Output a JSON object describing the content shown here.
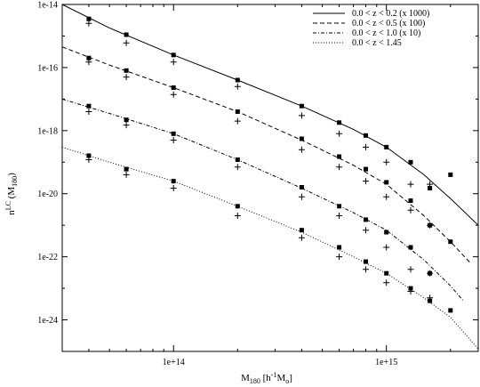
{
  "chart_data": {
    "type": "scatter",
    "title": "",
    "xlabel": "M180 [h^-1 Mo]",
    "ylabel": "n^LC (M180)",
    "xscale": "log",
    "yscale": "log",
    "xlim": [
      30000000000000,
      2700000000000000
    ],
    "ylim": [
      1e-25,
      1e-14
    ],
    "x_ticks": [
      {
        "value": 100000000000000,
        "label": "1e+14"
      },
      {
        "value": 1000000000000000,
        "label": "1e+15"
      }
    ],
    "y_ticks": [
      {
        "value": 1e-14,
        "label": "1e-14"
      },
      {
        "value": 1e-16,
        "label": "1e-16"
      },
      {
        "value": 1e-18,
        "label": "1e-18"
      },
      {
        "value": 1e-20,
        "label": "1e-20"
      },
      {
        "value": 1e-22,
        "label": "1e-22"
      },
      {
        "value": 1e-24,
        "label": "1e-24"
      }
    ],
    "grid": false,
    "legend_position": "top-right",
    "series": [
      {
        "name": "0.0 < z < 0.2   (x 1000)",
        "line_style": "solid",
        "model_curve": {
          "x": [
            30000000000000,
            50000000000000,
            100000000000000,
            200000000000000,
            400000000000000,
            700000000000000,
            1000000000000000,
            1500000000000000,
            2000000000000000,
            2700000000000000
          ],
          "y": [
            1e-14,
            1.8e-15,
            2.5e-16,
            4e-17,
            6e-18,
            1.1e-18,
            3e-19,
            4e-20,
            7e-21,
            1e-21
          ]
        },
        "squares": {
          "x": [
            40000000000000,
            60000000000000,
            100000000000000,
            200000000000000,
            400000000000000,
            600000000000000,
            800000000000000,
            1000000000000000,
            1300000000000000,
            1600000000000000,
            2000000000000000
          ],
          "y": [
            3.5e-15,
            1.1e-15,
            2.5e-16,
            4e-17,
            6e-18,
            1.8e-18,
            7e-19,
            3e-19,
            1e-19,
            1.5e-20,
            4e-20
          ]
        },
        "plus": {
          "x": [
            40000000000000,
            60000000000000,
            100000000000000,
            200000000000000,
            400000000000000,
            600000000000000,
            800000000000000,
            1000000000000000,
            1300000000000000,
            1600000000000000
          ],
          "y": [
            2.5e-15,
            6e-16,
            1.5e-16,
            2.5e-17,
            3e-18,
            8e-19,
            3e-19,
            1e-19,
            2e-20,
            2e-20
          ]
        }
      },
      {
        "name": "0.0 < z < 0.5   (x 100)",
        "line_style": "dashed",
        "model_curve": {
          "x": [
            30000000000000,
            50000000000000,
            100000000000000,
            200000000000000,
            400000000000000,
            700000000000000,
            1000000000000000,
            1500000000000000,
            2000000000000000,
            2500000000000000
          ],
          "y": [
            4.5e-16,
            1.2e-16,
            2.3e-17,
            4e-18,
            5e-19,
            8e-20,
            2e-20,
            2e-21,
            3e-22,
            6e-23
          ]
        },
        "squares": {
          "x": [
            40000000000000,
            60000000000000,
            100000000000000,
            200000000000000,
            400000000000000,
            600000000000000,
            800000000000000,
            1000000000000000,
            1300000000000000,
            1600000000000000,
            2000000000000000
          ],
          "y": [
            2e-16,
            8e-17,
            2.3e-17,
            4e-18,
            5.5e-19,
            1.5e-19,
            6e-20,
            2.3e-20,
            6e-21,
            1e-21,
            3e-22
          ]
        },
        "plus": {
          "x": [
            40000000000000,
            60000000000000,
            100000000000000,
            200000000000000,
            400000000000000,
            600000000000000,
            800000000000000,
            1000000000000000,
            1300000000000000,
            1600000000000000
          ],
          "y": [
            1.5e-16,
            5e-17,
            1.4e-17,
            2e-18,
            2.5e-19,
            7e-20,
            2.5e-20,
            8e-21,
            3e-21,
            1e-21
          ]
        }
      },
      {
        "name": "0.0 < z < 1.0   (x 10)",
        "line_style": "dash-dot",
        "model_curve": {
          "x": [
            30000000000000,
            50000000000000,
            100000000000000,
            200000000000000,
            400000000000000,
            700000000000000,
            1000000000000000,
            1500000000000000,
            2000000000000000,
            2300000000000000
          ],
          "y": [
            1e-17,
            3.5e-18,
            8e-19,
            1.2e-19,
            1.5e-20,
            2.5e-21,
            7e-22,
            8e-23,
            1.2e-23,
            4e-24
          ]
        },
        "squares": {
          "x": [
            40000000000000,
            60000000000000,
            100000000000000,
            200000000000000,
            400000000000000,
            600000000000000,
            800000000000000,
            1000000000000000,
            1300000000000000,
            1600000000000000
          ],
          "y": [
            6e-18,
            2.2e-18,
            8e-19,
            1.2e-19,
            1.6e-20,
            4e-21,
            1.5e-21,
            6e-22,
            2e-22,
            3e-23
          ]
        },
        "plus": {
          "x": [
            40000000000000,
            60000000000000,
            100000000000000,
            200000000000000,
            400000000000000,
            600000000000000,
            800000000000000,
            1000000000000000,
            1300000000000000,
            1600000000000000
          ],
          "y": [
            4e-18,
            1.5e-18,
            5e-19,
            7e-20,
            8e-21,
            2e-21,
            7e-22,
            2e-22,
            4e-23,
            3e-23
          ]
        }
      },
      {
        "name": "0.0 < z < 1.45",
        "line_style": "dotted",
        "model_curve": {
          "x": [
            30000000000000,
            50000000000000,
            100000000000000,
            200000000000000,
            400000000000000,
            700000000000000,
            1000000000000000,
            1500000000000000,
            2000000000000000,
            2700000000000000
          ],
          "y": [
            3e-19,
            1e-19,
            2.5e-20,
            4e-21,
            6e-22,
            1e-22,
            3e-23,
            5e-24,
            1.2e-24,
            1.2e-25
          ]
        },
        "squares": {
          "x": [
            40000000000000,
            60000000000000,
            100000000000000,
            200000000000000,
            400000000000000,
            600000000000000,
            800000000000000,
            1000000000000000,
            1300000000000000,
            1600000000000000,
            2000000000000000
          ],
          "y": [
            1.6e-19,
            6e-20,
            2.5e-20,
            4e-21,
            7e-22,
            2e-22,
            7e-23,
            3e-23,
            1e-23,
            4e-24,
            2e-24
          ]
        },
        "plus": {
          "x": [
            40000000000000,
            60000000000000,
            100000000000000,
            200000000000000,
            400000000000000,
            600000000000000,
            800000000000000,
            1000000000000000,
            1300000000000000,
            1600000000000000
          ],
          "y": [
            1.2e-19,
            4e-20,
            1.5e-20,
            2e-21,
            4e-22,
            1e-22,
            4e-23,
            1.5e-23,
            8e-24,
            5e-24
          ]
        }
      }
    ]
  }
}
